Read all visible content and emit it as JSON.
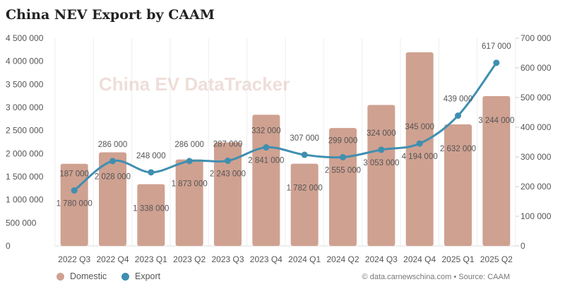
{
  "chart_data": {
    "type": "bar+line",
    "title": "China NEV Export by CAAM",
    "categories": [
      "2022 Q3",
      "2022 Q4",
      "2023 Q1",
      "2023 Q2",
      "2023 Q3",
      "2023 Q4",
      "2024 Q1",
      "2024 Q2",
      "2024 Q3",
      "2024 Q4",
      "2025 Q1",
      "2025 Q2"
    ],
    "series": [
      {
        "name": "Domestic",
        "type": "bar",
        "axis": "left",
        "color": "#cfa191",
        "values": [
          1780000,
          2028000,
          1338000,
          1873000,
          2243000,
          2841000,
          1782000,
          2555000,
          3053000,
          4194000,
          2632000,
          3244000
        ],
        "labels": [
          "1 780 000",
          "2 028 000",
          "1 338 000",
          "1 873 000",
          "2 243 000",
          "2 841 000",
          "1 782 000",
          "2 555 000",
          "3 053 000",
          "4 194 000",
          "2 632 000",
          "3 244 000"
        ]
      },
      {
        "name": "Export",
        "type": "line",
        "axis": "right",
        "color": "#3f8fb0",
        "values": [
          187000,
          286000,
          248000,
          286000,
          287000,
          332000,
          307000,
          299000,
          324000,
          345000,
          439000,
          617000
        ],
        "labels": [
          "187 000",
          "286 000",
          "248 000",
          "286 000",
          "287 000",
          "332 000",
          "307 000",
          "299 000",
          "324 000",
          "345 000",
          "439 000",
          "617 000"
        ]
      }
    ],
    "left_axis": {
      "range": [
        0,
        4500000
      ],
      "ticks": [
        "0",
        "500 000",
        "1 000 000",
        "1 500 000",
        "2 000 000",
        "2 500 000",
        "3 000 000",
        "3 500 000",
        "4 000 000",
        "4 500 000"
      ]
    },
    "right_axis": {
      "range": [
        0,
        700000
      ],
      "ticks": [
        "0",
        "100 000",
        "200 000",
        "300 000",
        "400 000",
        "500 000",
        "600 000",
        "700 000"
      ]
    },
    "grid": "vertical",
    "legend": "bottom-left"
  },
  "watermark": "China EV DataTracker",
  "source": "data.carnewschina.com • Source: CAAM"
}
